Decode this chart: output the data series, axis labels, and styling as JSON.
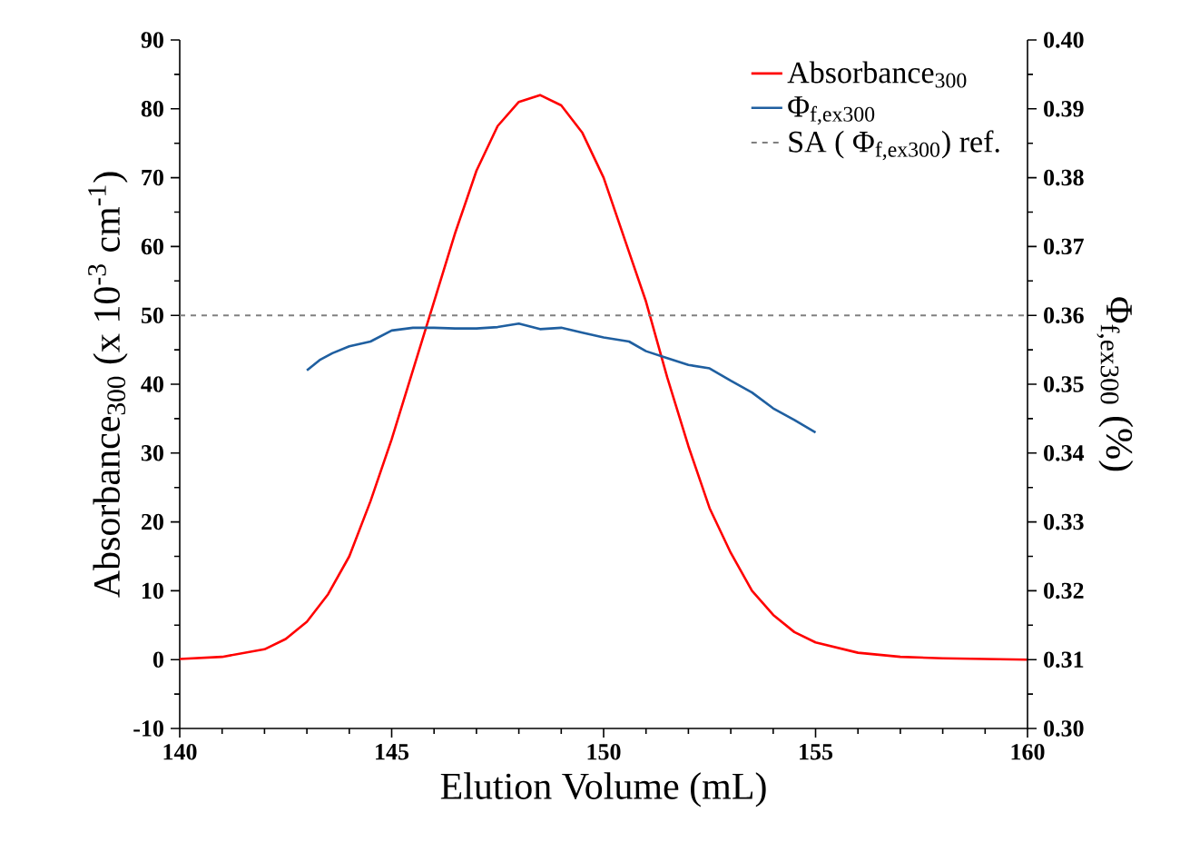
{
  "chart_data": {
    "type": "line",
    "xlabel": "Elution Volume (mL)",
    "ylabel": "Absorbance$_{300}$ (x 10$^{-3}$ cm$^{-1}$)",
    "y2label": "Φ$_{f,ex300}$ (%)",
    "xlim": [
      140,
      160
    ],
    "xticks": [
      140,
      145,
      150,
      155,
      160
    ],
    "ylim": [
      -10,
      90
    ],
    "yticks": [
      -10,
      0,
      10,
      20,
      30,
      40,
      50,
      60,
      70,
      80,
      90
    ],
    "y2lim": [
      0.3,
      0.4
    ],
    "y2ticks": [
      {
        "value": 0.3,
        "label": "0.30"
      },
      0.31,
      0.32,
      0.33,
      0.34,
      0.35,
      0.36,
      0.37,
      0.38,
      0.39,
      {
        "value": 0.4,
        "label": "0.40"
      }
    ],
    "legend": "top right",
    "marker": "none",
    "line_style": "solid",
    "series": [
      {
        "name": "Absorbance$_{300}$",
        "color": "#ff0000",
        "x": [
          140,
          141,
          142,
          142.5,
          143,
          143.5,
          144,
          144.5,
          145,
          145.5,
          146,
          146.5,
          147,
          147.5,
          148,
          148.5,
          149,
          149.5,
          150,
          150.5,
          151,
          151.5,
          152,
          152.5,
          153,
          153.5,
          154,
          154.5,
          155,
          156,
          157,
          158,
          160
        ],
        "values": [
          0.1,
          0.4,
          1.5,
          3,
          5.5,
          9.5,
          15,
          23,
          32,
          42,
          52,
          62,
          71,
          77.5,
          81,
          82,
          80.5,
          76.5,
          70,
          61,
          52,
          41,
          31,
          22,
          15.5,
          10,
          6.5,
          4,
          2.5,
          1,
          0.4,
          0.2,
          0
        ]
      },
      {
        "name": "Φ$_{f,ex300}$",
        "color": "#1f5fa0",
        "axis": "y2",
        "x": [
          143,
          143.3,
          143.6,
          144,
          144.5,
          145,
          145.5,
          146,
          146.5,
          147,
          147.5,
          148,
          148.5,
          149,
          149.5,
          150,
          150.6,
          151,
          151.5,
          152,
          152.5,
          153,
          153.5,
          154,
          154.5,
          155
        ],
        "values": [
          0.352,
          0.3535,
          0.3545,
          0.3555,
          0.3562,
          0.3578,
          0.3582,
          0.3582,
          0.3581,
          0.3581,
          0.3583,
          0.3588,
          0.358,
          0.3582,
          0.3575,
          0.3568,
          0.3562,
          0.3548,
          0.3538,
          0.3528,
          0.3523,
          0.3505,
          0.3488,
          0.3465,
          0.3448,
          0.343
        ]
      }
    ],
    "ref_lines": [
      {
        "axis": "y2",
        "value": 0.36,
        "label": "SA ( Φ$_{f,ex300}$) ref.",
        "color": "#808080",
        "line_style": "dashed"
      }
    ]
  }
}
